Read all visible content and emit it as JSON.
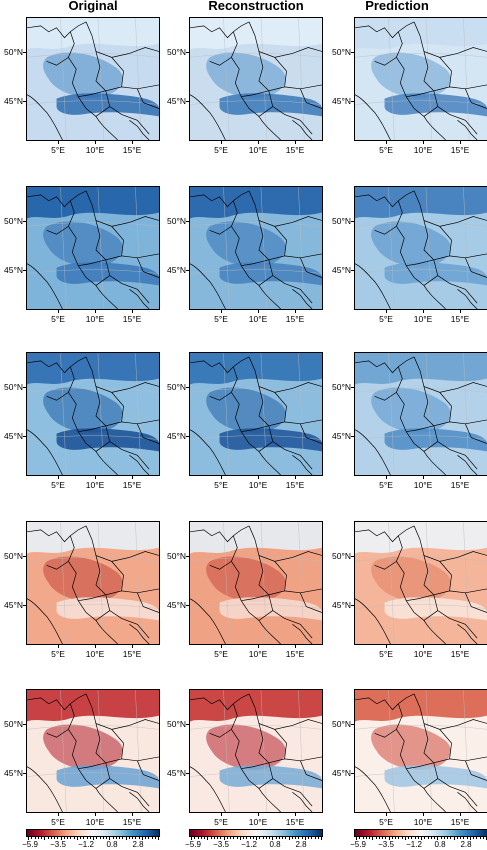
{
  "columns": [
    "Original",
    "Reconstruction",
    "Prediction"
  ],
  "lat_labels": [
    "50°N",
    "45°N"
  ],
  "lon_labels": [
    "5°E",
    "10°E",
    "15°E"
  ],
  "colorbar": {
    "tick_labels": [
      "−5.9",
      "−3.5",
      "−1.2",
      "0.8",
      "2.8"
    ],
    "colors": [
      "#67001f",
      "#b2182b",
      "#d6604d",
      "#f4a582",
      "#fddbc7",
      "#f7f7f7",
      "#d1e5f0",
      "#92c5de",
      "#4393c3",
      "#2166ac",
      "#053061"
    ]
  },
  "rows": [
    {
      "sign": "blue",
      "panels": [
        {
          "base": "#c6dbef",
          "accent": "#4d8cc4",
          "alps": "#2f6db0",
          "north": "#dcebf7"
        },
        {
          "base": "#c9ddef",
          "accent": "#5a96ca",
          "alps": "#3a78b8",
          "north": "#e1eef8"
        },
        {
          "base": "#d4e5f4",
          "accent": "#6aa2d2",
          "alps": "#4883c0",
          "north": "#c8ddef"
        }
      ]
    },
    {
      "sign": "blue",
      "panels": [
        {
          "base": "#7eb3da",
          "accent": "#2f6eb2",
          "alps": "#3a78b8",
          "north": "#1f5ea6"
        },
        {
          "base": "#86b8dc",
          "accent": "#3473b5",
          "alps": "#4580bd",
          "north": "#2563a9"
        },
        {
          "base": "#a6cbe6",
          "accent": "#4d8cc4",
          "alps": "#6aa2d2",
          "north": "#3f7cbb"
        }
      ]
    },
    {
      "sign": "blue",
      "panels": [
        {
          "base": "#8fbfe0",
          "accent": "#1f5ea6",
          "alps": "#1a4f94",
          "north": "#2d6db2"
        },
        {
          "base": "#8cbcde",
          "accent": "#2563a9",
          "alps": "#1d5599",
          "north": "#3172b5"
        },
        {
          "base": "#b3d2ea",
          "accent": "#5594ca",
          "alps": "#4d8cc4",
          "north": "#6aa2d2"
        }
      ]
    },
    {
      "sign": "red",
      "panels": [
        {
          "base": "#f2a88b",
          "accent": "#c2453b",
          "alps": "#f7e3da",
          "north": "#e8f1f8"
        },
        {
          "base": "#f0a285",
          "accent": "#c64a3f",
          "alps": "#f6ddd2",
          "north": "#e6eff7"
        },
        {
          "base": "#f4b59b",
          "accent": "#e07b61",
          "alps": "#f8e7df",
          "north": "#edf3f9"
        }
      ]
    },
    {
      "sign": "mixed",
      "panels": [
        {
          "base": "#f9e8e0",
          "accent": "#b51f2e",
          "alps": "#6aa2d2",
          "north": "#c22f33"
        },
        {
          "base": "#f9e9e2",
          "accent": "#b8232f",
          "alps": "#78acd6",
          "north": "#c43535"
        },
        {
          "base": "#fbefe9",
          "accent": "#cf4a3f",
          "alps": "#9cc5e3",
          "north": "#d95f4a"
        }
      ]
    }
  ]
}
